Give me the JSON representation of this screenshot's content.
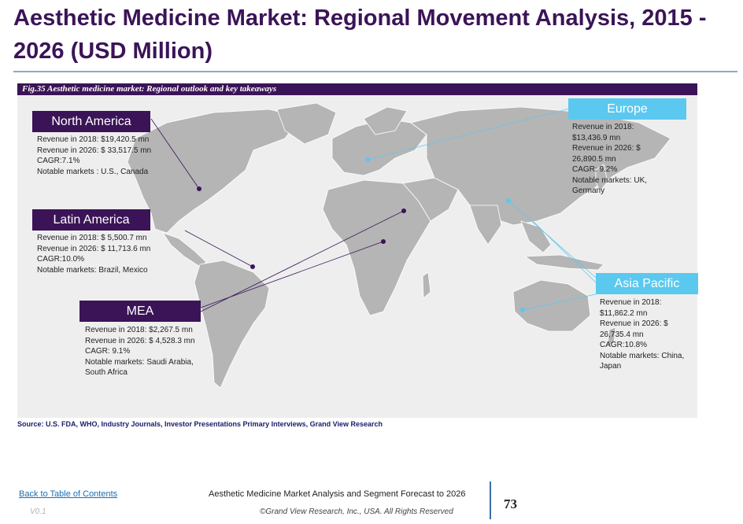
{
  "title": "Aesthetic Medicine Market: Regional Movement Analysis, 2015 - 2026 (USD Million)",
  "figure_caption": "Fig.35  Aesthetic medicine market: Regional outlook and key takeaways",
  "regions": {
    "north_america": {
      "label": "North America",
      "lines": [
        "Revenue in 2018: $19,420.5 mn",
        "Revenue in 2026: $ 33,517.5 mn",
        "CAGR:7.1%",
        "Notable markets : U.S., Canada"
      ]
    },
    "latin_america": {
      "label": "Latin America",
      "lines": [
        "Revenue in 2018: $ 5,500.7 mn",
        "Revenue in 2026: $ 11,713.6 mn",
        "CAGR:10.0%",
        "Notable markets: Brazil, Mexico"
      ]
    },
    "mea": {
      "label": "MEA",
      "lines": [
        "Revenue in 2018: $2,267.5 mn",
        "Revenue in 2026: $ 4,528.3 mn",
        "CAGR: 9.1%",
        "Notable markets: Saudi Arabia, South Africa"
      ]
    },
    "europe": {
      "label": "Europe",
      "lines": [
        "Revenue in 2018: $13,436.9 mn",
        "Revenue in 2026: $ 26,890.5 mn",
        "CAGR: 9.2%",
        "Notable markets: UK, Germany"
      ]
    },
    "asia_pacific": {
      "label": "Asia Pacific",
      "lines": [
        "Revenue in 2018: $11,862.2 mn",
        "Revenue in 2026: $ 26,735.4 mn",
        "CAGR:10.8%",
        "Notable markets: China, Japan"
      ]
    }
  },
  "colors": {
    "primary": "#3b1457",
    "accent": "#5bc8ef",
    "land": "#b5b5b5",
    "panel": "#eeeeee"
  },
  "source": "Source: U.S. FDA, WHO, Industry Journals, Investor Presentations Primary Interviews, Grand View Research",
  "footer": {
    "back_link": "Back to Table of Contents",
    "version": "V0.1",
    "report_title": "Aesthetic Medicine Market Analysis and Segment Forecast to 2026",
    "copyright": "©Grand View Research, Inc., USA. All Rights Reserved",
    "page_number": "73"
  }
}
